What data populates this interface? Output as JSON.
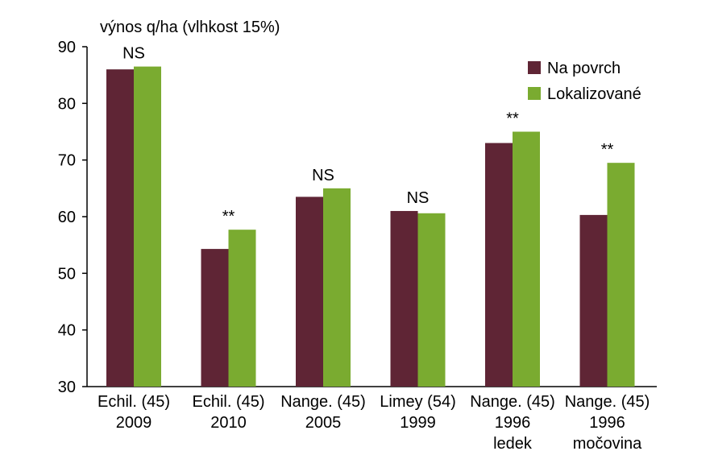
{
  "chart_data": {
    "type": "bar",
    "ylabel": "výnos q/ha (vlhkost 15%)",
    "ylim": [
      30,
      90
    ],
    "yticks": [
      30,
      40,
      50,
      60,
      70,
      80,
      90
    ],
    "categories": [
      [
        "Echil. (45)",
        "2009"
      ],
      [
        "Echil. (45)",
        "2010"
      ],
      [
        "Nange. (45)",
        "2005"
      ],
      [
        "Limey (54)",
        "1999"
      ],
      [
        "Nange. (45)",
        "1996",
        "ledek"
      ],
      [
        "Nange. (45)",
        "1996",
        "močovina"
      ]
    ],
    "series": [
      {
        "name": "Na povrch",
        "color": "#5f2535",
        "values": [
          86,
          54.3,
          63.5,
          61,
          73,
          60.3
        ]
      },
      {
        "name": "Lokalizované",
        "color": "#7aab30",
        "values": [
          86.5,
          57.7,
          65,
          60.6,
          75,
          69.5
        ]
      }
    ],
    "significance": [
      "NS",
      "**",
      "NS",
      "NS",
      "**",
      "**"
    ],
    "legend_position": "top-right"
  }
}
